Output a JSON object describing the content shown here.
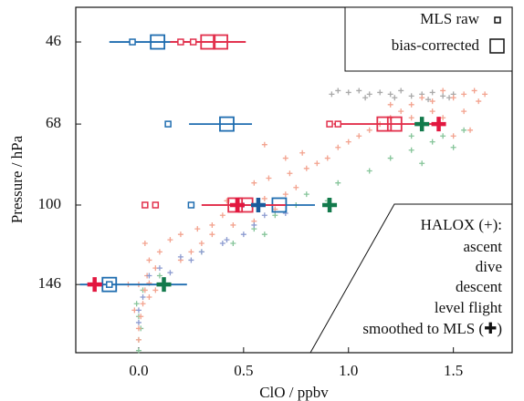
{
  "chart_data": {
    "type": "scatter",
    "xlabel": "ClO / ppbv",
    "ylabel": "Pressure / hPa",
    "xlim": [
      -0.3,
      1.78
    ],
    "ylim": [
      39,
      202
    ],
    "ylog": true,
    "yinvert": true,
    "xticks": [
      {
        "value": 0,
        "label": "0.0"
      },
      0.5,
      {
        "value": 1,
        "label": "1.0"
      },
      1.5
    ],
    "yticks": [
      46,
      68,
      100,
      146
    ],
    "legend": {
      "position": "upper right",
      "mls_raw": "MLS raw",
      "mls_corrected": "bias-corrected"
    },
    "halox_legend": {
      "position": "lower right",
      "title": "HALOX (+):",
      "smoothed": "smoothed to MLS (✚)"
    },
    "series": [
      {
        "name": "level flight",
        "color": "#a9a9a9",
        "x": [
          0.95,
          1.0,
          1.05,
          1.1,
          1.15,
          1.2,
          1.25,
          1.3,
          1.35,
          1.4,
          1.45,
          1.5,
          0.92,
          1.08,
          1.22,
          1.38,
          1.48
        ],
        "values": [
          58,
          58.5,
          58,
          59,
          58.5,
          59,
          58,
          59.5,
          59,
          58.5,
          59.5,
          59,
          59,
          60,
          60,
          60.5,
          60
        ]
      },
      {
        "name": "descent",
        "color": "#86c59a",
        "x": [
          0.0,
          0.0,
          0.01,
          0.0,
          -0.01,
          0.02,
          0.1,
          0.3,
          0.45,
          0.55,
          0.65,
          0.75,
          0.8,
          0.95,
          1.1,
          1.2,
          1.3,
          1.4,
          1.45,
          1.3,
          1.5,
          1.55,
          1.35,
          0.9,
          0.6
        ],
        "values": [
          200,
          190,
          180,
          170,
          160,
          150,
          140,
          125,
          120,
          112,
          105,
          100,
          95,
          90,
          85,
          80,
          77,
          74,
          72,
          72,
          76,
          70,
          82,
          98,
          115
        ]
      },
      {
        "name": "dive",
        "color": "#f3a38f",
        "x": [
          0.0,
          0.0,
          0.01,
          0.02,
          0.03,
          0.05,
          0.0,
          0.04,
          0.08,
          0.05,
          0.1,
          0.03,
          0.15,
          0.2,
          0.28,
          0.35,
          0.4,
          0.5,
          0.42,
          0.6,
          0.7,
          0.75,
          0.55,
          0.62,
          0.72,
          0.8,
          0.85,
          0.9,
          0.7,
          0.78,
          0.95,
          1.0,
          1.05,
          1.1,
          0.6,
          1.15,
          1.2,
          1.25,
          1.3,
          1.4,
          1.5,
          1.55,
          1.6,
          1.65,
          1.45,
          1.35,
          1.2,
          1.62,
          1.4,
          1.3,
          1.58,
          1.5,
          1.45,
          1.55,
          0.05,
          -0.02,
          0.08,
          -0.05,
          0.2,
          0.25,
          0.3,
          0.35,
          0.45,
          0.55,
          0.65
        ],
        "values": [
          190,
          180,
          170,
          160,
          150,
          145,
          146,
          140,
          135,
          130,
          125,
          120,
          118,
          115,
          112,
          110,
          105,
          100,
          98,
          97,
          95,
          92,
          90,
          88,
          86,
          84,
          82,
          80,
          80,
          78,
          76,
          74,
          72,
          70,
          75,
          68,
          66,
          64,
          62,
          61,
          60,
          59,
          58,
          59,
          58,
          60,
          62,
          61,
          64,
          66,
          70,
          72,
          66,
          64,
          155,
          165,
          150,
          146,
          130,
          125,
          120,
          115,
          110,
          108,
          102
        ]
      },
      {
        "name": "ascent",
        "color": "#8c9bd0",
        "x": [
          0.0,
          0.0,
          0.02,
          0.05,
          0.1,
          0.2,
          0.3,
          0.4,
          0.5,
          0.55,
          0.6,
          0.5,
          0.25,
          0.7,
          0.42,
          0.15
        ],
        "values": [
          175,
          165,
          155,
          140,
          135,
          128,
          125,
          120,
          115,
          110,
          105,
          100,
          130,
          104,
          118,
          138
        ]
      }
    ],
    "mls": [
      {
        "color": "#1f6db0",
        "raw_x": [
          -0.03,
          0.14,
          0.25,
          -0.14
        ],
        "raw_values": [
          46,
          68,
          100,
          146
        ],
        "x": [
          0.09,
          0.42,
          0.67,
          -0.14
        ],
        "values": [
          46,
          68,
          100,
          146
        ],
        "xmin": [
          -0.14,
          0.24,
          0.46,
          -0.28
        ],
        "xmax": [
          0.24,
          0.54,
          0.84,
          0.23
        ]
      },
      {
        "color": "#e2304c",
        "raw_x": [
          0.2,
          0.26,
          0.91,
          0.95,
          0.03,
          0.08
        ],
        "raw_values": [
          46,
          46,
          68,
          68,
          100,
          100
        ],
        "x": [
          0.33,
          0.39,
          1.17,
          1.22,
          0.46,
          0.51
        ],
        "values": [
          46,
          46,
          68,
          68,
          100,
          100
        ],
        "xmin": [
          0.15,
          0.15,
          0.93,
          0.93,
          0.3,
          0.3
        ],
        "xmax": [
          0.51,
          0.51,
          1.43,
          1.43,
          0.7,
          0.7
        ]
      }
    ],
    "smoothed": [
      {
        "color": "#e2173f",
        "x": [
          1.43,
          0.47,
          -0.21
        ],
        "values": [
          68,
          100,
          146
        ]
      },
      {
        "color": "#1a5b9c",
        "x": [
          0.57
        ],
        "values": [
          100
        ]
      },
      {
        "color": "#137a4c",
        "x": [
          1.35,
          0.91,
          0.12
        ],
        "values": [
          68,
          100,
          146
        ]
      }
    ]
  }
}
